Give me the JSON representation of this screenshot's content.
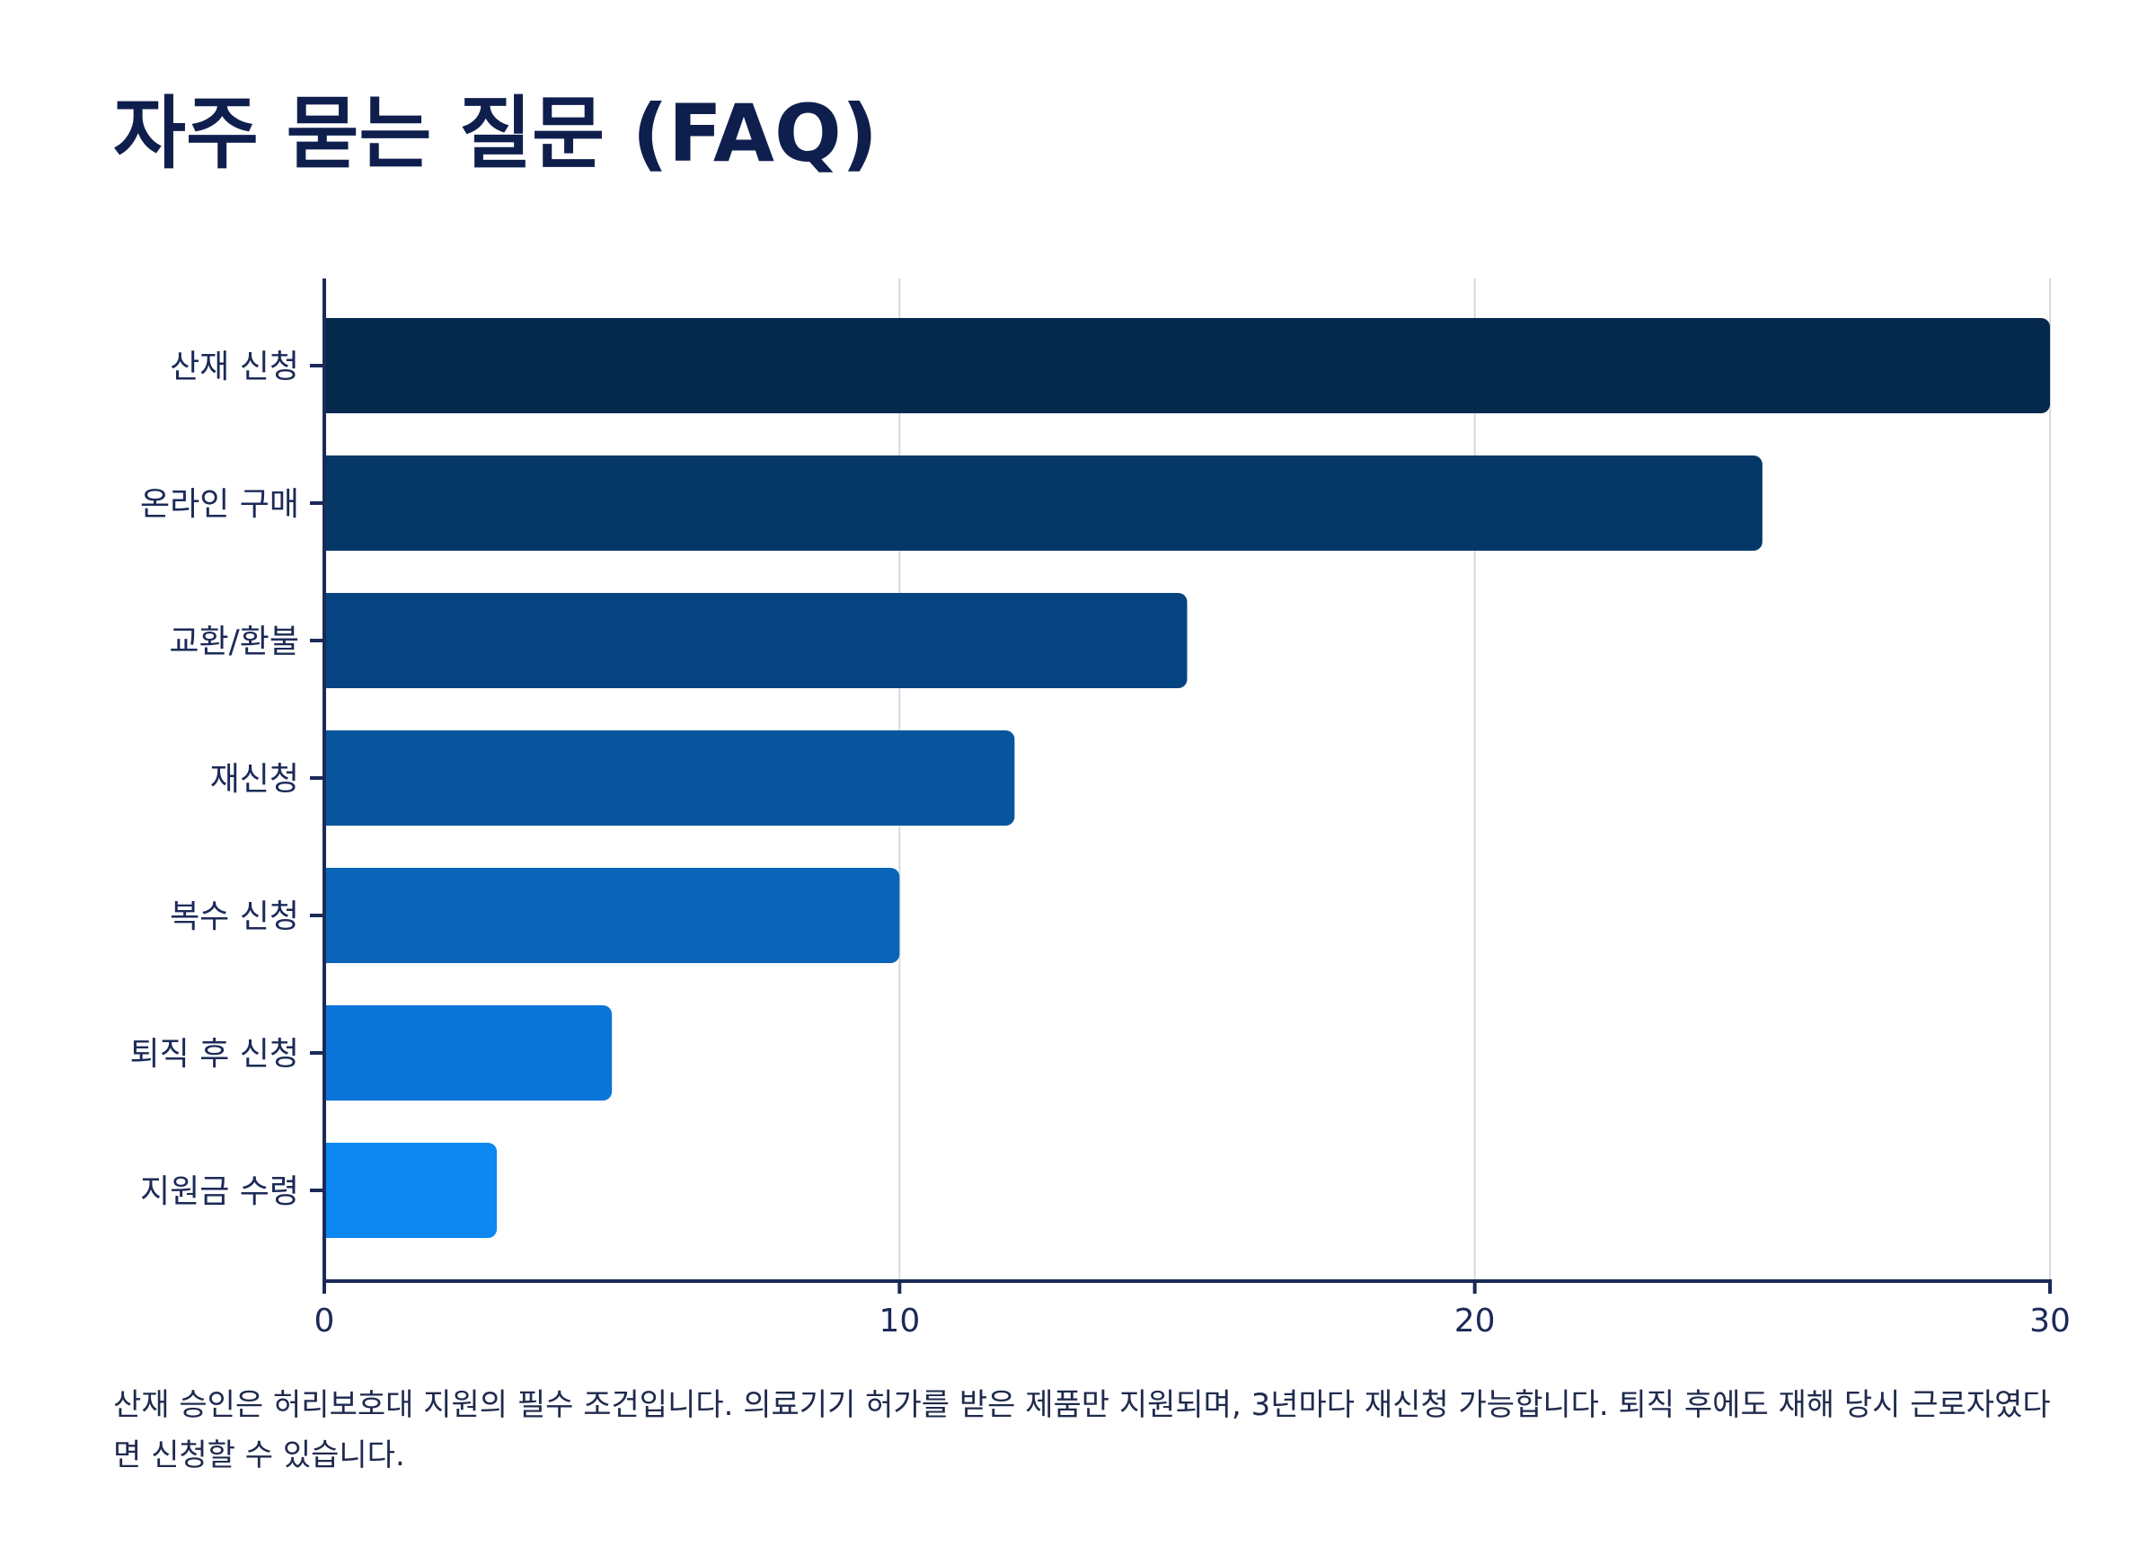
{
  "page": {
    "title": "자주 묻는 질문 (FAQ)",
    "note": "산재 승인은 허리보호대 지원의 필수 조건입니다. 의료기기 허가를 받은 제품만 지원되며, 3년마다 재신청 가능합니다. 퇴직 후에도 재해 당시 근로자였다면 신청할 수 있습니다."
  },
  "chart_data": {
    "type": "bar",
    "orientation": "horizontal",
    "categories": [
      "산재 신청",
      "온라인 구매",
      "교환/환불",
      "재신청",
      "복수 신청",
      "퇴직 후 신청",
      "지원금 수령"
    ],
    "values": [
      30,
      25,
      15,
      12,
      10,
      5,
      3
    ],
    "colors": [
      "#05284d",
      "#053866",
      "#054480",
      "#08559e",
      "#0a65b8",
      "#0b75d9",
      "#0d87f2"
    ],
    "xlim": [
      0,
      30
    ],
    "xticks": [
      0,
      10,
      20,
      30
    ],
    "xlabel": "",
    "ylabel": "",
    "grid": true,
    "legend": "none"
  }
}
